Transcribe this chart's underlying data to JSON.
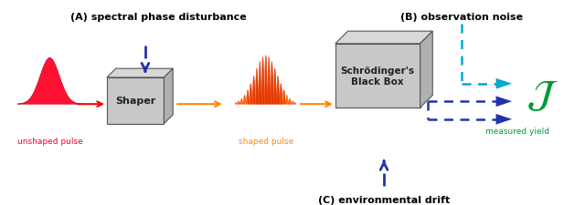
{
  "label_A": "(A) spectral phase disturbance",
  "label_B": "(B) observation noise",
  "label_C": "(C) environmental drift",
  "label_unshaped": "unshaped pulse",
  "label_shaped": "shaped pulse",
  "label_shaper": "Shaper",
  "label_blackbox": "Schrödinger's\nBlack Box",
  "label_J": "$\\mathcal{J}$",
  "label_measured": "measured yield",
  "bg_color": "#ffffff",
  "text_color": "#000000",
  "red_fill": "#ff1133",
  "red_edge": "#cc0022",
  "orange_color": "#ff8800",
  "blue_arrow_color": "#2233aa",
  "teal_color": "#00aacc",
  "green_color": "#009933",
  "box_face": "#c8c8c8",
  "box_top": "#d8d8d8",
  "box_right": "#b0b0b0",
  "box_edge": "#555555"
}
